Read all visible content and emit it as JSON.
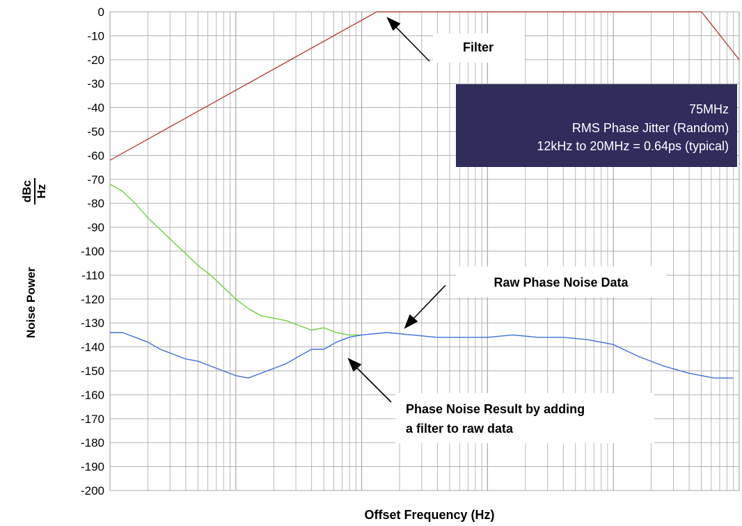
{
  "chart_data": {
    "type": "line",
    "title": "",
    "xlabel": "Offset Frequency (Hz)",
    "ylabel": "Noise Power",
    "ylabel_unit_num": "dBc",
    "ylabel_unit_den": "Hz",
    "ylim": [
      -200,
      0
    ],
    "y_ticks": [
      "0",
      "-10",
      "-20",
      "-30",
      "-40",
      "-50",
      "-60",
      "-70",
      "-80",
      "-90",
      "-100",
      "-110",
      "-120",
      "-130",
      "-140",
      "-150",
      "-160",
      "-170",
      "-180",
      "-190",
      "-200"
    ],
    "x_scale": "log",
    "x_decade_span": [
      0,
      5
    ],
    "grid": true,
    "series": [
      {
        "color": "#b5433a",
        "x": [
          0,
          2.12,
          4.7,
          5.0
        ],
        "values": [
          -62,
          0,
          0,
          -20
        ]
      },
      {
        "color": "#6ecf3e",
        "x": [
          0,
          0.1,
          0.2,
          0.3,
          0.4,
          0.5,
          0.6,
          0.7,
          0.8,
          0.9,
          1.0,
          1.1,
          1.2,
          1.3,
          1.4,
          1.5,
          1.6,
          1.7,
          1.8,
          1.9,
          2.0
        ],
        "values": [
          -72,
          -75,
          -80,
          -86,
          -91,
          -96,
          -101,
          -106,
          -110,
          -115,
          -120,
          -124,
          -127,
          -128,
          -129,
          -131,
          -133,
          -132,
          -134,
          -135,
          -135
        ]
      },
      {
        "color": "#3e6fd9",
        "x": [
          0,
          0.1,
          0.2,
          0.3,
          0.4,
          0.5,
          0.6,
          0.7,
          0.8,
          0.9,
          1.0,
          1.1,
          1.2,
          1.3,
          1.4,
          1.5,
          1.6,
          1.7,
          1.8,
          1.9,
          2.0,
          2.2,
          2.4,
          2.6,
          2.8,
          3.0,
          3.2,
          3.4,
          3.6,
          3.8,
          4.0,
          4.2,
          4.4,
          4.6,
          4.8,
          4.95
        ],
        "values": [
          -134,
          -134,
          -136,
          -138,
          -141,
          -143,
          -145,
          -146,
          -148,
          -150,
          -152,
          -153,
          -151,
          -149,
          -147,
          -144,
          -141,
          -141,
          -138,
          -136,
          -135,
          -134,
          -135,
          -136,
          -136,
          -136,
          -135,
          -136,
          -136,
          -137,
          -139,
          -144,
          -148,
          -151,
          -153,
          -153
        ]
      }
    ],
    "annotations": {
      "filter": "Filter",
      "raw": "Raw Phase Noise Data",
      "result_line1": "Phase Noise Result by adding",
      "result_line2": "a filter to raw data"
    },
    "info_box": {
      "line1": "75MHz",
      "line2": "RMS Phase Jitter (Random)",
      "line3": "12kHz to 20MHz = 0.64ps (typical)",
      "bg_color": "#2e2d5c"
    }
  }
}
